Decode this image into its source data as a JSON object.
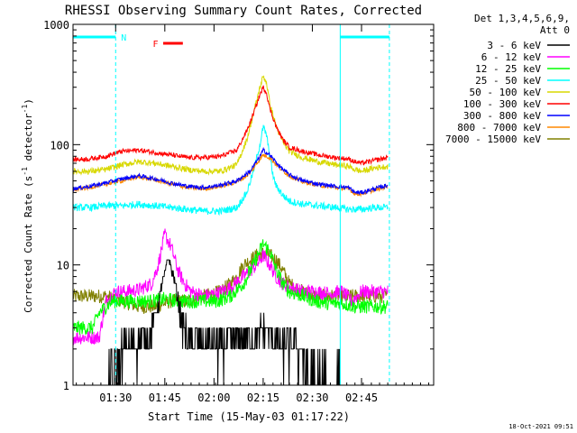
{
  "chart_data": {
    "type": "line",
    "title": "RHESSI Observing Summary Count Rates, Corrected",
    "xlabel": "Start Time (15-May-03 01:17:22)",
    "ylabel": "Corrected Count Rate (s^-1 detector^-1)",
    "ylabel_parts": {
      "main": "Corrected Count Rate (s",
      "sup1": "-1",
      "mid": " detector",
      "sup2": "-1",
      "end": ")"
    },
    "yscale": "log",
    "ylim": [
      1,
      1000
    ],
    "xlim_min": [
      0,
      110
    ],
    "x_ticks": [
      {
        "t": 13,
        "label": "01:30"
      },
      {
        "t": 28,
        "label": "01:45"
      },
      {
        "t": 43,
        "label": "02:00"
      },
      {
        "t": 58,
        "label": "02:15"
      },
      {
        "t": 73,
        "label": "02:30"
      },
      {
        "t": 88,
        "label": "02:45"
      }
    ],
    "y_ticks": [
      {
        "v": 1,
        "label": "1"
      },
      {
        "v": 10,
        "label": "10"
      },
      {
        "v": 100,
        "label": "100"
      },
      {
        "v": 1000,
        "label": "1000"
      }
    ],
    "legend": {
      "header": [
        "Det 1,3,4,5,6,9,",
        "Att 0"
      ],
      "position": "right"
    },
    "series": [
      {
        "name": "3 - 6 keV",
        "color": "#000000",
        "x": [
          0,
          10,
          13,
          15,
          18,
          22,
          25,
          27,
          29,
          31,
          33,
          36,
          40,
          45,
          50,
          55,
          58,
          61,
          64,
          66,
          68,
          70,
          72,
          73,
          76,
          80,
          82
        ],
        "values": [
          1,
          1,
          1.8,
          2.5,
          2.7,
          2.8,
          4,
          7,
          12,
          8,
          4,
          2.7,
          2.8,
          2.6,
          3,
          3.2,
          3.5,
          3,
          2.5,
          2.6,
          2.7,
          2.4,
          1.6,
          1.5,
          1.5,
          1.4,
          1.5
        ]
      },
      {
        "name": "6 - 12 keV",
        "color": "#ff00ff",
        "x": [
          0,
          8,
          10,
          13,
          16,
          20,
          24,
          26,
          28,
          30,
          32,
          34,
          36,
          40,
          44,
          48,
          52,
          56,
          58,
          60,
          62,
          64,
          66,
          70,
          74,
          78,
          82,
          85,
          88,
          92,
          96
        ],
        "values": [
          2.5,
          2.5,
          5,
          6,
          6,
          6.2,
          7,
          10,
          18,
          14,
          9,
          7,
          6,
          5.5,
          5.8,
          6.5,
          8,
          10,
          12,
          10,
          8,
          7,
          6.5,
          6,
          6,
          5.8,
          6,
          5,
          6,
          6,
          6
        ]
      },
      {
        "name": "12 - 25 keV",
        "color": "#00ff00",
        "x": [
          0,
          6,
          8,
          10,
          12,
          16,
          20,
          24,
          28,
          32,
          36,
          40,
          44,
          48,
          52,
          55,
          58,
          60,
          62,
          64,
          66,
          70,
          74,
          78,
          82,
          86,
          88,
          92,
          96
        ],
        "values": [
          3,
          3,
          4,
          4.5,
          5,
          5,
          5,
          5,
          5.2,
          5,
          5,
          5,
          5,
          5.5,
          7,
          10,
          15,
          13,
          9,
          7,
          6,
          5.5,
          5,
          4.8,
          4.8,
          4.5,
          4.5,
          4.5,
          4.5
        ]
      },
      {
        "name": "25 - 50 keV",
        "color": "#00ffff",
        "x": [
          0,
          5,
          10,
          15,
          20,
          25,
          30,
          35,
          40,
          45,
          50,
          53,
          55,
          57,
          58,
          59,
          60,
          61,
          62,
          64,
          66,
          70,
          75,
          80,
          84,
          88,
          92,
          96
        ],
        "values": [
          30,
          30,
          31,
          31,
          32,
          31,
          30,
          29,
          28,
          28,
          30,
          40,
          60,
          100,
          140,
          120,
          80,
          55,
          45,
          38,
          34,
          32,
          31,
          30,
          29,
          29,
          30,
          30
        ]
      },
      {
        "name": "50 - 100 keV",
        "color": "#d8d800",
        "x": [
          0,
          5,
          10,
          15,
          20,
          25,
          30,
          35,
          40,
          45,
          50,
          53,
          55,
          57,
          58,
          59,
          60,
          62,
          64,
          66,
          70,
          75,
          80,
          84,
          86,
          88,
          92,
          96
        ],
        "values": [
          60,
          60,
          62,
          68,
          72,
          70,
          66,
          62,
          60,
          60,
          68,
          110,
          180,
          300,
          370,
          330,
          220,
          140,
          105,
          88,
          78,
          72,
          68,
          66,
          62,
          60,
          64,
          66
        ]
      },
      {
        "name": "100 - 300 keV",
        "color": "#ff0000",
        "x": [
          0,
          5,
          10,
          15,
          20,
          25,
          30,
          35,
          40,
          45,
          50,
          53,
          55,
          57,
          58,
          59,
          60,
          62,
          64,
          66,
          70,
          75,
          80,
          84,
          86,
          88,
          92,
          96
        ],
        "values": [
          75,
          76,
          80,
          88,
          90,
          86,
          82,
          78,
          78,
          80,
          90,
          130,
          180,
          260,
          300,
          270,
          200,
          140,
          110,
          95,
          88,
          82,
          78,
          76,
          72,
          70,
          74,
          78
        ]
      },
      {
        "name": "300 - 800 keV",
        "color": "#0000ff",
        "x": [
          0,
          5,
          10,
          15,
          20,
          25,
          30,
          35,
          40,
          45,
          50,
          54,
          57,
          58,
          60,
          63,
          66,
          70,
          75,
          80,
          84,
          86,
          88,
          92,
          96
        ],
        "values": [
          43,
          45,
          48,
          52,
          55,
          52,
          48,
          45,
          44,
          46,
          50,
          60,
          80,
          90,
          82,
          66,
          56,
          50,
          47,
          45,
          44,
          40,
          40,
          43,
          46
        ]
      },
      {
        "name": "800 - 7000 keV",
        "color": "#ff8800",
        "x": [
          0,
          5,
          10,
          15,
          20,
          25,
          30,
          35,
          40,
          45,
          50,
          54,
          57,
          58,
          60,
          63,
          66,
          70,
          75,
          80,
          84,
          86,
          88,
          92,
          96
        ],
        "values": [
          42,
          44,
          47,
          50,
          54,
          51,
          47,
          44,
          43,
          45,
          49,
          58,
          76,
          82,
          78,
          64,
          55,
          49,
          46,
          44,
          43,
          39,
          39,
          42,
          45
        ]
      },
      {
        "name": "7000 - 15000 keV",
        "color": "#808000",
        "x": [
          0,
          5,
          10,
          15,
          20,
          25,
          30,
          35,
          40,
          45,
          48,
          50,
          52,
          54,
          56,
          58,
          60,
          62,
          64,
          66,
          70,
          74,
          78,
          82,
          86,
          90,
          96
        ],
        "values": [
          5.5,
          5.5,
          5.5,
          5,
          4.5,
          4.5,
          5,
          5,
          5.5,
          6,
          7,
          8,
          10,
          11,
          12,
          12.5,
          12,
          11,
          9,
          7,
          6,
          5.5,
          5.5,
          5.5,
          5.5,
          5.5,
          5.5
        ]
      }
    ],
    "annotations": {
      "n_bar_label": "N",
      "f_bar_label": "F",
      "bottom_stamp": "18-Oct-2021 09:51"
    }
  }
}
